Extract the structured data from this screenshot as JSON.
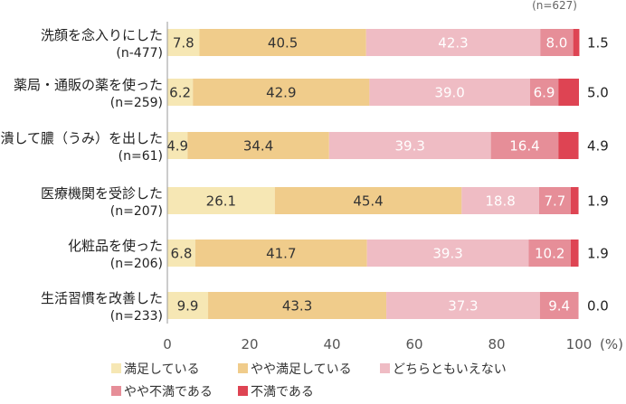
{
  "chart_data": {
    "type": "bar",
    "orientation": "horizontal",
    "stacked": true,
    "note": "(n=627)",
    "categories": [
      {
        "label": "洗顔を念入りにした",
        "n": "(n-477)"
      },
      {
        "label": "薬局・通販の薬を使った",
        "n": "(n=259)"
      },
      {
        "label": "潰して膿（うみ）を出した",
        "n": "(n=61)"
      },
      {
        "label": "医療機関を受診した",
        "n": "(n=207)"
      },
      {
        "label": "化粧品を使った",
        "n": "(n=206)"
      },
      {
        "label": "生活習慣を改善した",
        "n": "(n=233)"
      }
    ],
    "series": [
      {
        "name": "満足している",
        "color": "#f6e7b4",
        "labelColor": "#333333",
        "values": [
          7.8,
          6.2,
          4.9,
          26.1,
          6.8,
          9.9
        ]
      },
      {
        "name": "やや満足している",
        "color": "#f0cc8b",
        "labelColor": "#333333",
        "values": [
          40.5,
          42.9,
          34.4,
          45.4,
          41.7,
          43.3
        ]
      },
      {
        "name": "どちらともいえない",
        "color": "#efbcc4",
        "labelColor": "#ffffff",
        "values": [
          42.3,
          39.0,
          39.3,
          18.8,
          39.3,
          37.3
        ]
      },
      {
        "name": "やや不満である",
        "color": "#e68e98",
        "labelColor": "#ffffff",
        "values": [
          8.0,
          6.9,
          16.4,
          7.7,
          10.2,
          9.4
        ]
      },
      {
        "name": "不満である",
        "color": "#de4453",
        "labelColor": "#ffffff",
        "values": [
          1.5,
          5.0,
          4.9,
          1.9,
          1.9,
          0.0
        ]
      }
    ],
    "outside_labels": [
      "1.5",
      "5.0",
      "4.9",
      "1.9",
      "1.9",
      "0.0"
    ],
    "xlim": [
      0,
      100
    ],
    "xticks": [
      0,
      20,
      40,
      60,
      80,
      100
    ],
    "xunit": "(%)",
    "legend_position": "bottom"
  }
}
